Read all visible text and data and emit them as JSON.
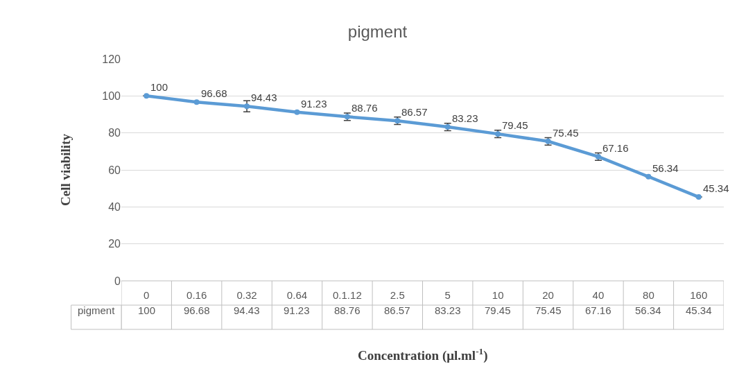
{
  "chart_data": {
    "type": "line",
    "title": "pigment",
    "xlabel": "Concentration (μl.ml$^{-1}$)",
    "ylabel": "Cell viability",
    "categories": [
      "0",
      "0.16",
      "0.32",
      "0.64",
      "0.1.12",
      "2.5",
      "5",
      "10",
      "20",
      "40",
      "80",
      "160"
    ],
    "series": [
      {
        "name": "pigment",
        "color": "#5b9bd5",
        "values": [
          100,
          96.68,
          94.43,
          91.23,
          88.76,
          86.57,
          83.23,
          79.45,
          75.45,
          67.16,
          56.34,
          45.34
        ],
        "errors": [
          null,
          null,
          3,
          null,
          2,
          2,
          2,
          2,
          2,
          2,
          null,
          null
        ]
      }
    ],
    "ylim": [
      0,
      120
    ],
    "yticks": [
      0,
      20,
      40,
      60,
      80,
      100,
      120
    ],
    "grid": "y",
    "legend": false,
    "marker": "circle",
    "line_style": "solid",
    "data_labels": true,
    "annotations": [
      {
        "text": "100",
        "x": "0",
        "y": 100
      },
      {
        "text": "96.68",
        "x": "0.16",
        "y": 96.68
      },
      {
        "text": "94.43",
        "x": "0.32",
        "y": 94.43
      },
      {
        "text": "91.23",
        "x": "0.64",
        "y": 91.23
      },
      {
        "text": "88.76",
        "x": "0.1.12",
        "y": 88.76
      },
      {
        "text": "86.57",
        "x": "2.5",
        "y": 86.57
      },
      {
        "text": "83.23",
        "x": "5",
        "y": 83.23
      },
      {
        "text": "79.45",
        "x": "10",
        "y": 79.45
      },
      {
        "text": "75.45",
        "x": "20",
        "y": 75.45
      },
      {
        "text": "67.16",
        "x": "40",
        "y": 67.16
      },
      {
        "text": "56.34",
        "x": "80",
        "y": 56.34
      },
      {
        "text": "45.34",
        "x": "160",
        "y": 45.34
      }
    ]
  }
}
